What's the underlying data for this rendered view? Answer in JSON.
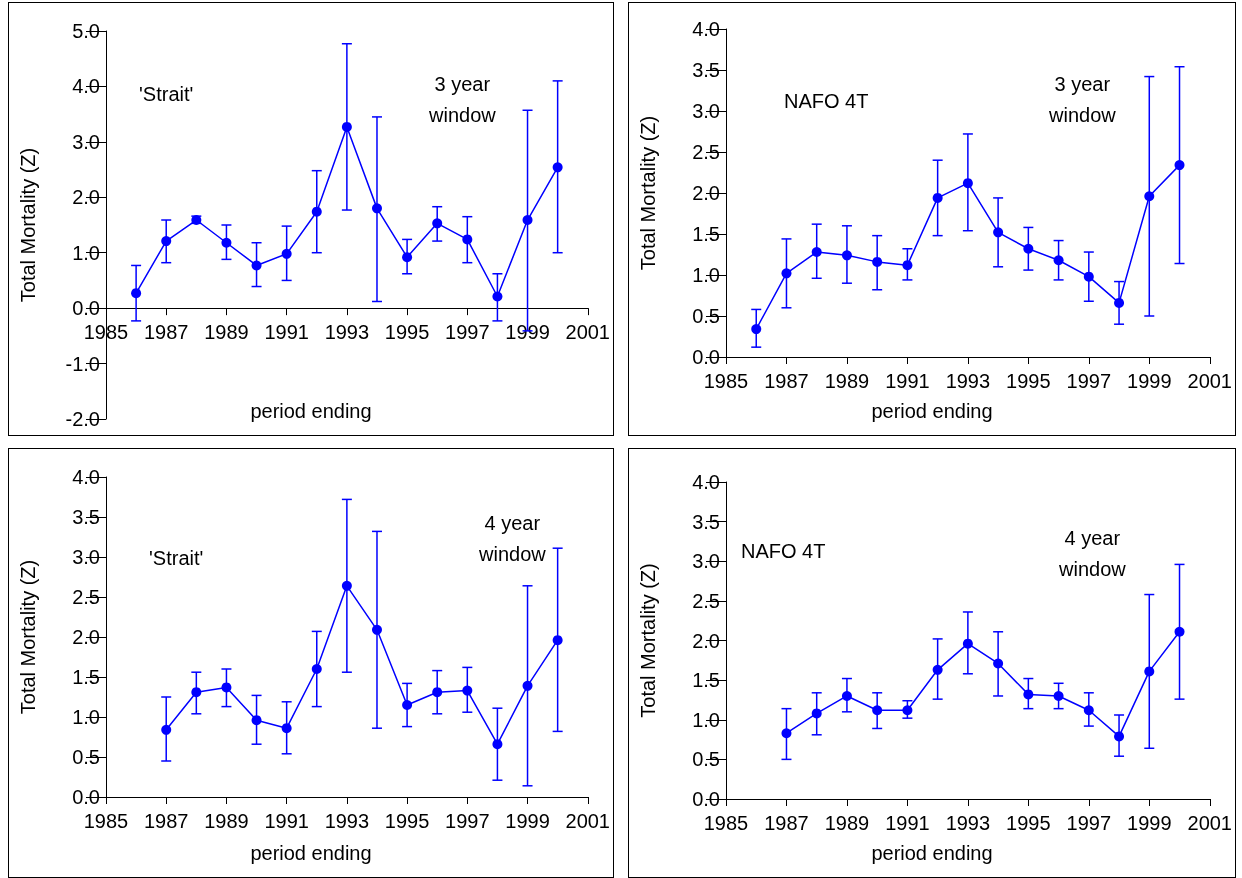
{
  "chart_data": [
    {
      "type": "line",
      "xlabel": "period ending",
      "ylabel": "Total Mortality (Z)",
      "annotations": [
        "'Strait'",
        "3 year\nwindow"
      ],
      "marker": "circle",
      "x": [
        1986,
        1987,
        1988,
        1989,
        1990,
        1991,
        1992,
        1993,
        1994,
        1995,
        1996,
        1997,
        1998,
        1999,
        2000
      ],
      "series": [
        {
          "color": "#0000ff",
          "values": [
            0.27,
            1.21,
            1.59,
            1.18,
            0.77,
            0.98,
            1.74,
            3.27,
            1.8,
            0.92,
            1.53,
            1.24,
            0.21,
            1.59,
            2.54
          ],
          "errors": [
            [
              -0.23,
              0.77
            ],
            [
              0.82,
              1.59
            ],
            [
              1.53,
              1.66
            ],
            [
              0.88,
              1.5
            ],
            [
              0.39,
              1.18
            ],
            [
              0.5,
              1.48
            ],
            [
              1.0,
              2.48
            ],
            [
              1.77,
              4.77
            ],
            [
              0.12,
              3.45
            ],
            [
              0.62,
              1.24
            ],
            [
              1.21,
              1.83
            ],
            [
              0.82,
              1.65
            ],
            [
              -0.23,
              0.62
            ],
            [
              -0.41,
              3.57
            ],
            [
              1.0,
              4.1
            ]
          ]
        }
      ],
      "xlim": [
        1985,
        2001
      ],
      "xticks": [
        1985,
        1987,
        1989,
        1991,
        1993,
        1995,
        1997,
        1999,
        2001
      ],
      "ylim": [
        -2,
        5
      ],
      "yticks": [
        {
          "value": -2,
          "label": "-2.0"
        },
        {
          "value": -1,
          "label": "-1.0"
        },
        {
          "value": 0,
          "label": "0.0"
        },
        {
          "value": 1,
          "label": "1.0"
        },
        {
          "value": 2,
          "label": "2.0"
        },
        {
          "value": 3,
          "label": "3.0"
        },
        {
          "value": 4,
          "label": "4.0"
        },
        {
          "value": 5,
          "label": "5.0"
        }
      ]
    },
    {
      "type": "line",
      "xlabel": "period ending",
      "ylabel": "Total Mortality (Z)",
      "annotations": [
        "NAFO 4T",
        "3 year\nwindow"
      ],
      "marker": "circle",
      "x": [
        1986,
        1987,
        1988,
        1989,
        1990,
        1991,
        1992,
        1993,
        1994,
        1995,
        1996,
        1997,
        1998,
        1999,
        2000
      ],
      "series": [
        {
          "color": "#0000ff",
          "values": [
            0.34,
            1.02,
            1.28,
            1.24,
            1.16,
            1.12,
            1.94,
            2.12,
            1.52,
            1.32,
            1.18,
            0.98,
            0.66,
            1.96,
            2.34
          ],
          "errors": [
            [
              0.12,
              0.58
            ],
            [
              0.6,
              1.44
            ],
            [
              0.96,
              1.62
            ],
            [
              0.9,
              1.6
            ],
            [
              0.82,
              1.48
            ],
            [
              0.94,
              1.32
            ],
            [
              1.48,
              2.4
            ],
            [
              1.54,
              2.72
            ],
            [
              1.1,
              1.94
            ],
            [
              1.06,
              1.58
            ],
            [
              0.94,
              1.42
            ],
            [
              0.68,
              1.28
            ],
            [
              0.4,
              0.92
            ],
            [
              0.5,
              3.42
            ],
            [
              1.14,
              3.54
            ]
          ]
        }
      ],
      "xlim": [
        1985,
        2001
      ],
      "xticks": [
        1985,
        1987,
        1989,
        1991,
        1993,
        1995,
        1997,
        1999,
        2001
      ],
      "ylim": [
        0,
        4
      ],
      "yticks": [
        {
          "value": 0,
          "label": "0.0"
        },
        {
          "value": 0.5,
          "label": "0.5"
        },
        {
          "value": 1,
          "label": "1.0"
        },
        {
          "value": 1.5,
          "label": "1.5"
        },
        {
          "value": 2,
          "label": "2.0"
        },
        {
          "value": 2.5,
          "label": "2.5"
        },
        {
          "value": 3,
          "label": "3.0"
        },
        {
          "value": 3.5,
          "label": "3.5"
        },
        {
          "value": 4,
          "label": "4.0"
        }
      ]
    },
    {
      "type": "line",
      "xlabel": "period ending",
      "ylabel": "Total Mortality (Z)",
      "annotations": [
        "'Strait'",
        "4 year\nwindow"
      ],
      "marker": "circle",
      "x": [
        1987,
        1988,
        1989,
        1990,
        1991,
        1992,
        1993,
        1994,
        1995,
        1996,
        1997,
        1998,
        1999,
        2000
      ],
      "series": [
        {
          "color": "#0000ff",
          "values": [
            0.84,
            1.31,
            1.37,
            0.96,
            0.86,
            1.6,
            2.64,
            2.09,
            1.15,
            1.31,
            1.33,
            0.66,
            1.39,
            1.96
          ],
          "errors": [
            [
              0.45,
              1.25
            ],
            [
              1.04,
              1.56
            ],
            [
              1.13,
              1.6
            ],
            [
              0.66,
              1.27
            ],
            [
              0.54,
              1.19
            ],
            [
              1.13,
              2.07
            ],
            [
              1.56,
              3.72
            ],
            [
              0.86,
              3.32
            ],
            [
              0.88,
              1.42
            ],
            [
              1.04,
              1.58
            ],
            [
              1.06,
              1.62
            ],
            [
              0.21,
              1.11
            ],
            [
              0.14,
              2.64
            ],
            [
              0.82,
              3.11
            ]
          ]
        }
      ],
      "xlim": [
        1985,
        2001
      ],
      "xticks": [
        1985,
        1987,
        1989,
        1991,
        1993,
        1995,
        1997,
        1999,
        2001
      ],
      "ylim": [
        0,
        4
      ],
      "yticks": [
        {
          "value": 0,
          "label": "0.0"
        },
        {
          "value": 0.5,
          "label": "0.5"
        },
        {
          "value": 1,
          "label": "1.0"
        },
        {
          "value": 1.5,
          "label": "1.5"
        },
        {
          "value": 2,
          "label": "2.0"
        },
        {
          "value": 2.5,
          "label": "2.5"
        },
        {
          "value": 3,
          "label": "3.0"
        },
        {
          "value": 3.5,
          "label": "3.5"
        },
        {
          "value": 4,
          "label": "4.0"
        }
      ]
    },
    {
      "type": "line",
      "xlabel": "period ending",
      "ylabel": "Total Mortality (Z)",
      "annotations": [
        "NAFO 4T",
        "4 year\nwindow"
      ],
      "marker": "circle",
      "x": [
        1987,
        1988,
        1989,
        1990,
        1991,
        1992,
        1993,
        1994,
        1995,
        1996,
        1997,
        1998,
        1999,
        2000
      ],
      "series": [
        {
          "color": "#0000ff",
          "values": [
            0.83,
            1.08,
            1.3,
            1.12,
            1.12,
            1.63,
            1.96,
            1.71,
            1.32,
            1.3,
            1.12,
            0.79,
            1.61,
            2.11
          ],
          "errors": [
            [
              0.5,
              1.14
            ],
            [
              0.81,
              1.34
            ],
            [
              1.1,
              1.52
            ],
            [
              0.89,
              1.34
            ],
            [
              1.02,
              1.24
            ],
            [
              1.26,
              2.02
            ],
            [
              1.58,
              2.36
            ],
            [
              1.3,
              2.11
            ],
            [
              1.14,
              1.52
            ],
            [
              1.14,
              1.46
            ],
            [
              0.92,
              1.34
            ],
            [
              0.54,
              1.06
            ],
            [
              0.64,
              2.58
            ],
            [
              1.26,
              2.96
            ]
          ]
        }
      ],
      "xlim": [
        1985,
        2001
      ],
      "xticks": [
        1985,
        1987,
        1989,
        1991,
        1993,
        1995,
        1997,
        1999,
        2001
      ],
      "ylim": [
        0,
        4
      ],
      "yticks": [
        {
          "value": 0,
          "label": "0.0"
        },
        {
          "value": 0.5,
          "label": "0.5"
        },
        {
          "value": 1,
          "label": "1.0"
        },
        {
          "value": 1.5,
          "label": "1.5"
        },
        {
          "value": 2,
          "label": "2.0"
        },
        {
          "value": 2.5,
          "label": "2.5"
        },
        {
          "value": 3,
          "label": "3.0"
        },
        {
          "value": 3.5,
          "label": "3.5"
        },
        {
          "value": 4,
          "label": "4.0"
        }
      ]
    }
  ]
}
